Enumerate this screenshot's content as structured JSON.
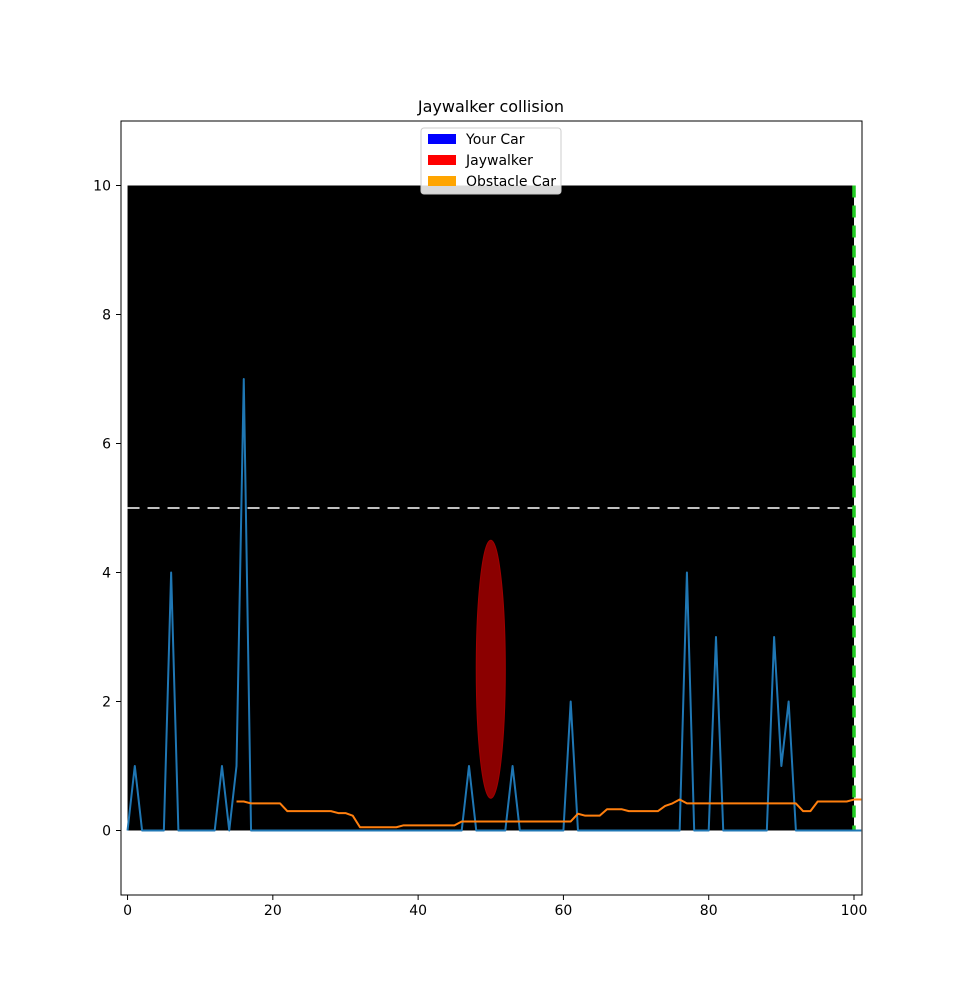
{
  "chart_data": {
    "type": "line",
    "title": "Jaywalker collision",
    "xlabel": "",
    "ylabel": "",
    "xlim": [
      -0.9,
      101.1
    ],
    "ylim": [
      -1,
      11
    ],
    "xticks": [
      0,
      20,
      40,
      60,
      80,
      100
    ],
    "yticks": [
      0,
      2,
      4,
      6,
      8,
      10
    ],
    "grid": false,
    "legend_placement": "top-center",
    "legend": [
      {
        "label": "Your Car",
        "color": "#0000ff"
      },
      {
        "label": "Jaywalker",
        "color": "#ff0000"
      },
      {
        "label": "Obstacle Car",
        "color": "#ffa500"
      }
    ],
    "road": {
      "x": [
        0,
        100
      ],
      "y": [
        0,
        10
      ],
      "color": "#000000"
    },
    "lane_divider": {
      "y": 5,
      "color": "#ffffff",
      "style": "dashed"
    },
    "finish_line": {
      "x": 100,
      "color": "#22cc22",
      "style": "dashed"
    },
    "jaywalker": {
      "center": [
        50,
        2.5
      ],
      "width": 4,
      "height": 4,
      "color": "#8b0000"
    },
    "series": [
      {
        "color": "#1f77b4",
        "x": [
          0,
          1,
          2,
          3,
          4,
          5,
          6,
          7,
          8,
          9,
          10,
          11,
          12,
          13,
          14,
          15,
          16,
          17,
          18,
          19,
          20,
          21,
          22,
          23,
          24,
          25,
          26,
          27,
          28,
          29,
          30,
          31,
          32,
          33,
          34,
          35,
          36,
          37,
          38,
          39,
          40,
          41,
          42,
          43,
          44,
          45,
          46,
          47,
          48,
          49,
          50,
          51,
          52,
          53,
          54,
          55,
          56,
          57,
          58,
          59,
          60,
          61,
          62,
          63,
          64,
          65,
          66,
          67,
          68,
          69,
          70,
          71,
          72,
          73,
          74,
          75,
          76,
          77,
          78,
          79,
          80,
          81,
          82,
          83,
          84,
          85,
          86,
          87,
          88,
          89,
          90,
          91,
          92,
          93,
          94,
          95,
          96,
          97,
          98,
          99,
          100,
          101
        ],
        "y": [
          0,
          1,
          0,
          0,
          0,
          0,
          4,
          0,
          0,
          0,
          0,
          0,
          0,
          1,
          0,
          1,
          7,
          0,
          0,
          0,
          0,
          0,
          0,
          0,
          0,
          0,
          0,
          0,
          0,
          0,
          0,
          0,
          0,
          0,
          0,
          0,
          0,
          0,
          0,
          0,
          0,
          0,
          0,
          0,
          0,
          0,
          0,
          1,
          0,
          0,
          0,
          0,
          0,
          1,
          0,
          0,
          0,
          0,
          0,
          0,
          0,
          2,
          0,
          0,
          0,
          0,
          0,
          0,
          0,
          0,
          0,
          0,
          0,
          0,
          0,
          0,
          0,
          4,
          0,
          0,
          0,
          3,
          0,
          0,
          0,
          0,
          0,
          0,
          0,
          3,
          1,
          2,
          0,
          0,
          0,
          0,
          0,
          0,
          0,
          0,
          0,
          0
        ]
      },
      {
        "color": "#ff7f0e",
        "x": [
          15,
          16,
          17,
          18,
          19,
          20,
          21,
          22,
          23,
          24,
          25,
          26,
          27,
          28,
          29,
          30,
          31,
          32,
          33,
          34,
          35,
          36,
          37,
          38,
          39,
          40,
          41,
          42,
          43,
          44,
          45,
          46,
          47,
          48,
          49,
          50,
          51,
          52,
          53,
          54,
          55,
          56,
          57,
          58,
          59,
          60,
          61,
          62,
          63,
          64,
          65,
          66,
          67,
          68,
          69,
          70,
          71,
          72,
          73,
          74,
          75,
          76,
          77,
          78,
          79,
          80,
          81,
          82,
          83,
          84,
          85,
          86,
          87,
          88,
          89,
          90,
          91,
          92,
          93,
          94,
          95,
          96,
          97,
          98,
          99,
          100,
          101
        ],
        "y": [
          0.45,
          0.45,
          0.42,
          0.42,
          0.42,
          0.42,
          0.42,
          0.3,
          0.3,
          0.3,
          0.3,
          0.3,
          0.3,
          0.3,
          0.27,
          0.27,
          0.23,
          0.05,
          0.05,
          0.05,
          0.05,
          0.05,
          0.05,
          0.08,
          0.08,
          0.08,
          0.08,
          0.08,
          0.08,
          0.08,
          0.08,
          0.14,
          0.14,
          0.14,
          0.14,
          0.14,
          0.14,
          0.14,
          0.14,
          0.14,
          0.14,
          0.14,
          0.14,
          0.14,
          0.14,
          0.14,
          0.14,
          0.26,
          0.23,
          0.23,
          0.23,
          0.33,
          0.33,
          0.33,
          0.3,
          0.3,
          0.3,
          0.3,
          0.3,
          0.38,
          0.42,
          0.48,
          0.42,
          0.42,
          0.42,
          0.42,
          0.42,
          0.42,
          0.42,
          0.42,
          0.42,
          0.42,
          0.42,
          0.42,
          0.42,
          0.42,
          0.42,
          0.42,
          0.3,
          0.3,
          0.45,
          0.45,
          0.45,
          0.45,
          0.45,
          0.48,
          0.48
        ]
      }
    ]
  }
}
